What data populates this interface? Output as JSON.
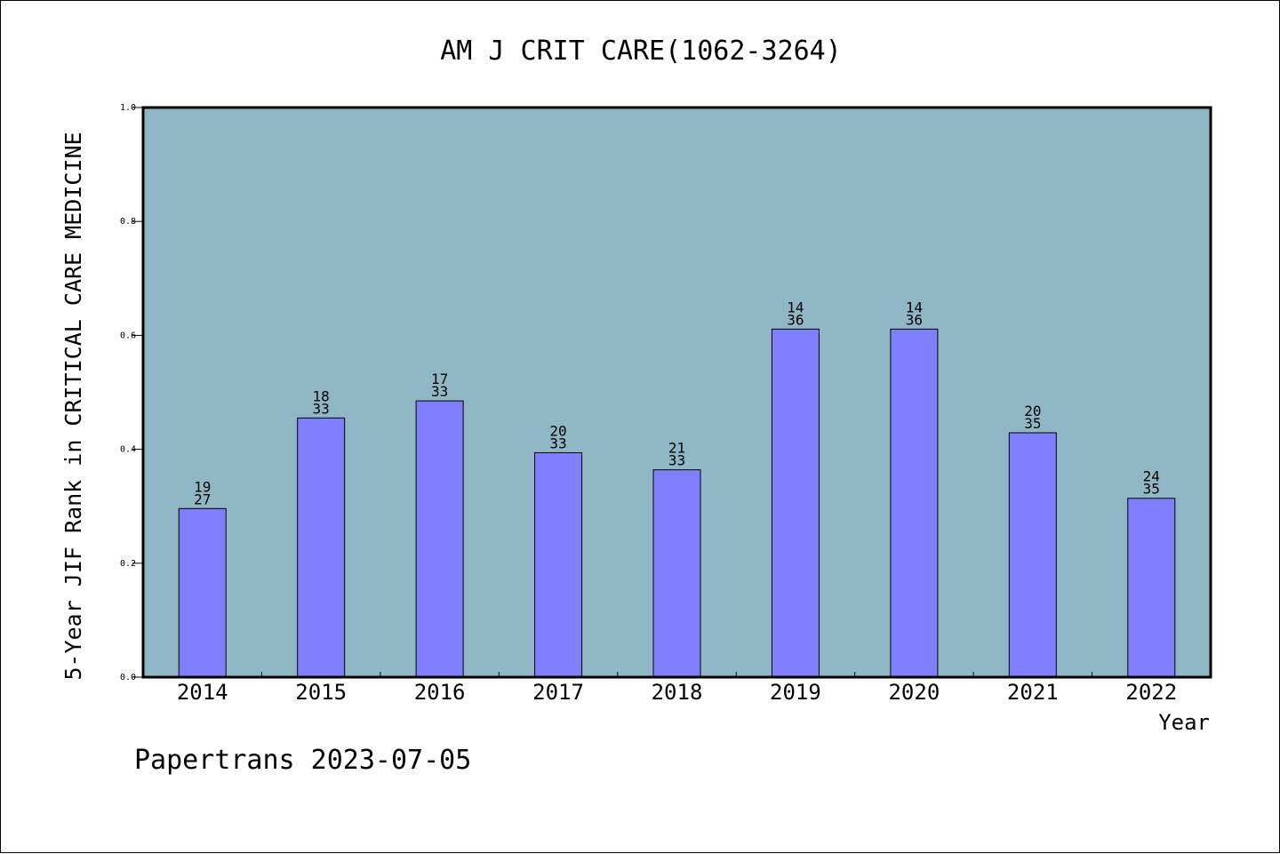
{
  "chart_data": {
    "type": "bar",
    "title": "AM J CRIT CARE(1062-3264)",
    "ylabel": "5-Year JIF Rank in CRITICAL CARE MEDICINE",
    "xlabel": "Year",
    "categories": [
      "2014",
      "2015",
      "2016",
      "2017",
      "2018",
      "2019",
      "2020",
      "2021",
      "2022"
    ],
    "values": [
      0.296,
      0.455,
      0.485,
      0.394,
      0.364,
      0.611,
      0.611,
      0.429,
      0.314
    ],
    "bar_labels": [
      {
        "top": "19",
        "bottom": "27"
      },
      {
        "top": "18",
        "bottom": "33"
      },
      {
        "top": "17",
        "bottom": "33"
      },
      {
        "top": "20",
        "bottom": "33"
      },
      {
        "top": "21",
        "bottom": "33"
      },
      {
        "top": "14",
        "bottom": "36"
      },
      {
        "top": "14",
        "bottom": "36"
      },
      {
        "top": "20",
        "bottom": "35"
      },
      {
        "top": "24",
        "bottom": "35"
      }
    ],
    "ylim": [
      0,
      1.0
    ],
    "yticks": [
      "0.0",
      "0.2",
      "0.4",
      "0.6",
      "0.8",
      "1.0"
    ],
    "grid": false,
    "colors": {
      "plot_bg": "#8fb7c5",
      "bar": "#8080ff"
    }
  },
  "footer": "Papertrans 2023-07-05"
}
